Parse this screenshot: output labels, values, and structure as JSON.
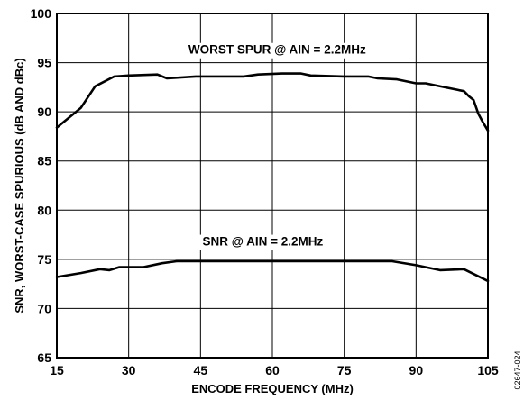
{
  "chart_data": {
    "type": "line",
    "title": "",
    "xlabel": "ENCODE FREQUENCY (MHz)",
    "ylabel": "SNR, WORST-CASE SPURIOUS (dB AND dBc)",
    "xlim": [
      15,
      105
    ],
    "ylim": [
      65,
      100
    ],
    "x_ticks": [
      15,
      30,
      45,
      60,
      75,
      90,
      105
    ],
    "y_ticks": [
      65,
      70,
      75,
      80,
      85,
      90,
      95,
      100
    ],
    "x_tick_labels": [
      "15",
      "30",
      "45",
      "60",
      "75",
      "90",
      "105"
    ],
    "y_tick_labels": [
      "65",
      "70",
      "75",
      "80",
      "85",
      "90",
      "95",
      "100"
    ],
    "grid": true,
    "figure_id": "02647-024",
    "series": [
      {
        "name": "WORST SPUR @ AIN = 2.2MHz",
        "x": [
          15,
          20,
          23,
          27,
          30,
          36,
          38,
          44,
          48,
          54,
          57,
          62,
          66,
          68,
          75,
          80,
          82,
          86,
          90,
          92,
          96,
          100,
          101,
          102,
          103,
          104,
          105
        ],
        "y": [
          88.4,
          90.4,
          92.6,
          93.6,
          93.7,
          93.8,
          93.4,
          93.6,
          93.6,
          93.6,
          93.8,
          93.9,
          93.9,
          93.7,
          93.6,
          93.6,
          93.4,
          93.3,
          92.9,
          92.9,
          92.5,
          92.1,
          91.6,
          91.2,
          89.8,
          88.9,
          88.1
        ]
      },
      {
        "name": "SNR @ AIN = 2.2MHz",
        "x": [
          15,
          20,
          24,
          26,
          28,
          33,
          37,
          40,
          45,
          60,
          75,
          85,
          90,
          95,
          100,
          105
        ],
        "y": [
          73.2,
          73.6,
          74.0,
          73.9,
          74.2,
          74.2,
          74.6,
          74.8,
          74.8,
          74.8,
          74.8,
          74.8,
          74.4,
          73.9,
          74.0,
          72.8
        ]
      }
    ],
    "annotations": [
      {
        "text": "WORST SPUR @ AIN = 2.2MHz",
        "x": 61,
        "y": 95.9
      },
      {
        "text": "SNR @ AIN = 2.2MHz",
        "x": 58,
        "y": 76.4
      }
    ]
  }
}
